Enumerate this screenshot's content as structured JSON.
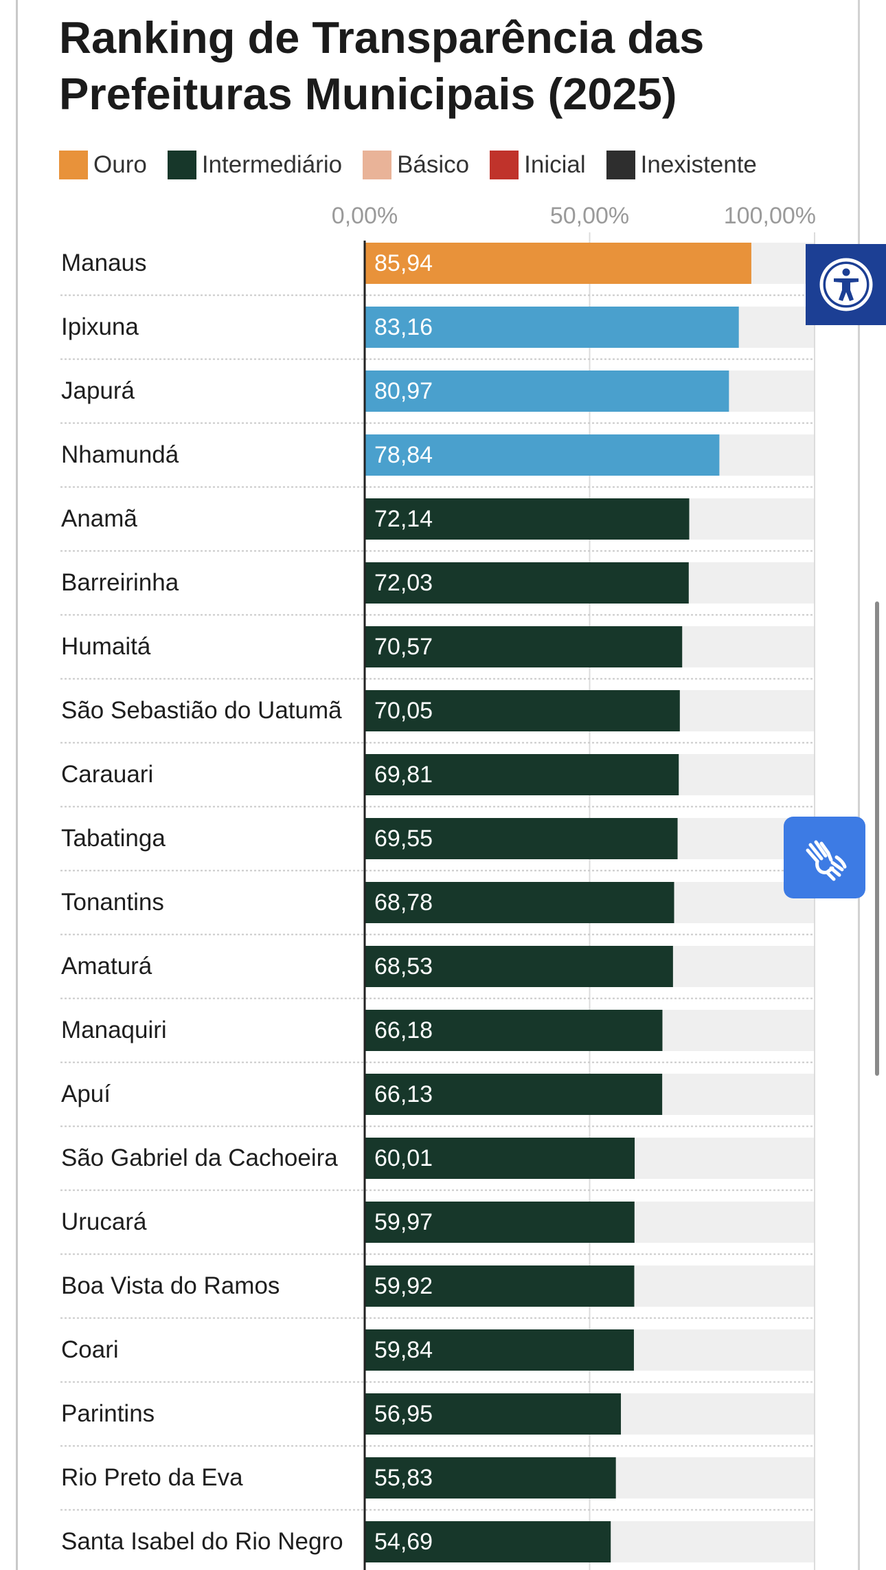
{
  "chart_data": {
    "type": "bar",
    "orientation": "horizontal",
    "title": "Ranking de Transparência das Prefeituras Municipais (2025)",
    "legend": {
      "placement": "top",
      "items": [
        {
          "label": "Ouro",
          "color": "#e8923a"
        },
        {
          "label": "Intermediário",
          "color": "#17372a"
        },
        {
          "label": "Básico",
          "color": "#e9b398"
        },
        {
          "label": "Inicial",
          "color": "#c0332b"
        },
        {
          "label": "Inexistente",
          "color": "#2e2e2e"
        }
      ]
    },
    "x_ticks": [
      "0,00%",
      "50,00%",
      "100,00%"
    ],
    "xlim": [
      0,
      100
    ],
    "grid": true,
    "categories": [
      "Manaus",
      "Ipixuna",
      "Japurá",
      "Nhamundá",
      "Anamã",
      "Barreirinha",
      "Humaitá",
      "São Sebastião do Uatumã",
      "Carauari",
      "Tabatinga",
      "Tonantins",
      "Amaturá",
      "Manaquiri",
      "Apuí",
      "São Gabriel da Cachoeira",
      "Urucará",
      "Boa Vista do Ramos",
      "Coari",
      "Parintins",
      "Rio Preto da Eva",
      "Santa Isabel do Rio Negro"
    ],
    "values": [
      85.94,
      83.16,
      80.97,
      78.84,
      72.14,
      72.03,
      70.57,
      70.05,
      69.81,
      69.55,
      68.78,
      68.53,
      66.18,
      66.13,
      60.01,
      59.97,
      59.92,
      59.84,
      56.95,
      55.83,
      54.69
    ],
    "value_labels": [
      "85,94",
      "83,16",
      "80,97",
      "78,84",
      "72,14",
      "72,03",
      "70,57",
      "70,05",
      "69,81",
      "69,55",
      "68,78",
      "68,53",
      "66,18",
      "66,13",
      "60,01",
      "59,97",
      "59,92",
      "59,84",
      "56,95",
      "55,83",
      "54,69"
    ],
    "bar_colors": [
      "#e8923a",
      "#4aa0cd",
      "#4aa0cd",
      "#4aa0cd",
      "#17372a",
      "#17372a",
      "#17372a",
      "#17372a",
      "#17372a",
      "#17372a",
      "#17372a",
      "#17372a",
      "#17372a",
      "#17372a",
      "#17372a",
      "#17372a",
      "#17372a",
      "#17372a",
      "#17372a",
      "#17372a",
      "#17372a"
    ],
    "background_track_color": "#efefef"
  },
  "widgets": {
    "accessibility_icon": "accessibility-icon",
    "sign_language_icon": "sign-language-hands-icon"
  }
}
